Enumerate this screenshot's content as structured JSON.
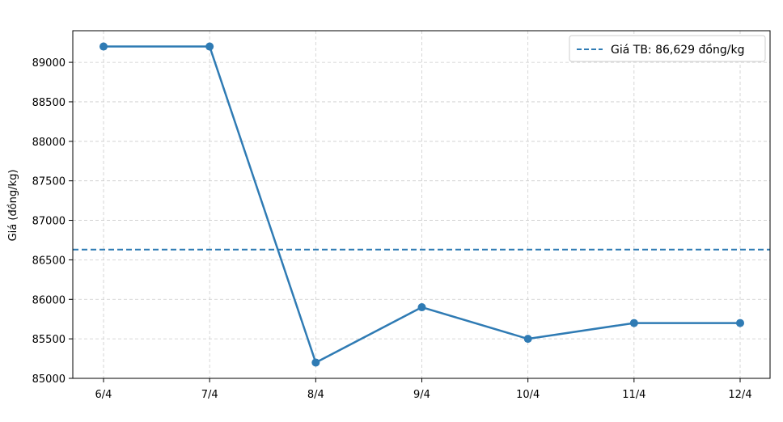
{
  "chart_data": {
    "type": "line",
    "title": "",
    "xlabel": "",
    "ylabel": "Giá (đồng/kg)",
    "categories": [
      "6/4",
      "7/4",
      "8/4",
      "9/4",
      "10/4",
      "11/4",
      "12/4"
    ],
    "series": [
      {
        "values": [
          89200,
          89200,
          85200,
          85900,
          85500,
          85700,
          85700
        ],
        "color": "#2f7bb4"
      }
    ],
    "reference_line": {
      "label": "Giá TB: 86,629 đồng/kg",
      "value": 86629,
      "color": "#2f7bb4",
      "style": "dashed"
    },
    "ylim": [
      85000,
      89400
    ],
    "yticks": [
      85000,
      85500,
      86000,
      86500,
      87000,
      87500,
      88000,
      88500,
      89000
    ],
    "grid": true,
    "legend_position": "top-right"
  }
}
